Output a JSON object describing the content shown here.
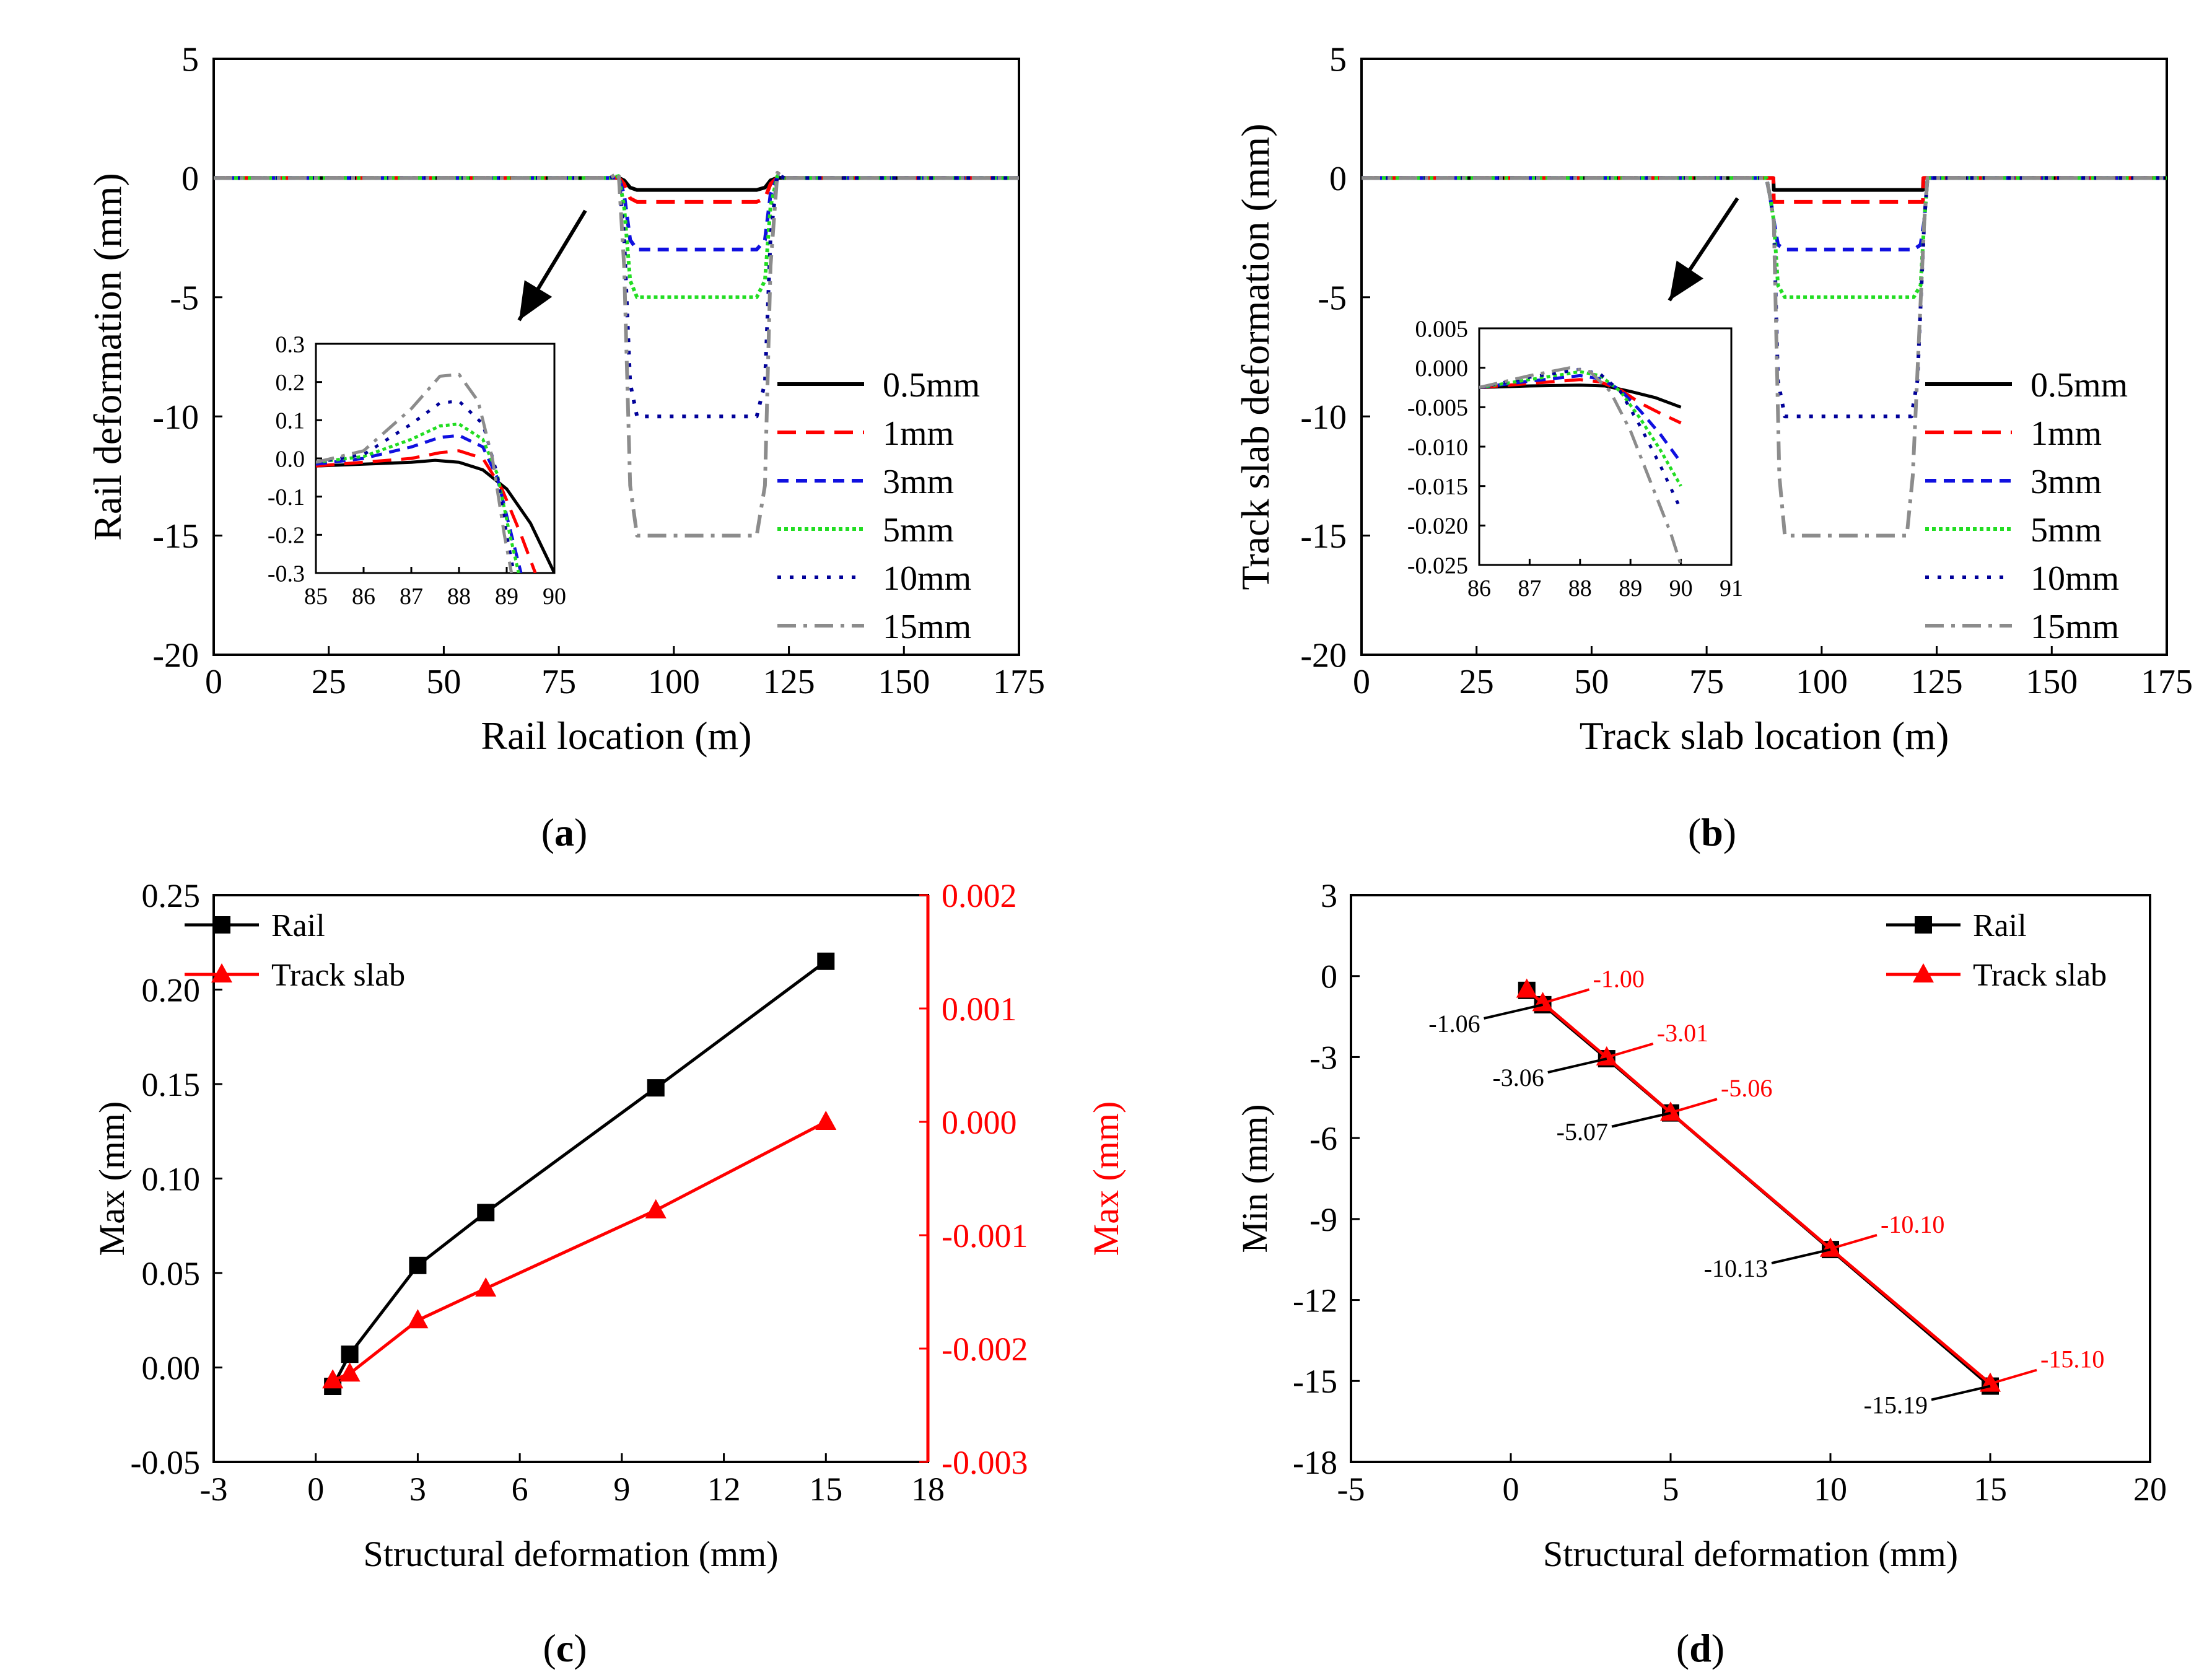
{
  "panels": {
    "a": {
      "label": "a"
    },
    "b": {
      "label": "b"
    },
    "c": {
      "label": "c"
    },
    "d": {
      "label": "d"
    }
  },
  "colors": {
    "0.5mm": "#000000",
    "1mm": "#ff0000",
    "3mm": "#1010e0",
    "5mm": "#22dd22",
    "10mm": "#000099",
    "15mm": "#8c8c8c",
    "Rail": "#000000",
    "Track slab": "#ff0000"
  },
  "chart_data": [
    {
      "id": "a",
      "type": "line",
      "xlabel": "Rail location (m)",
      "ylabel": "Rail deformation (mm)",
      "xlim": [
        0,
        175
      ],
      "ylim": [
        -20,
        5
      ],
      "xticks": [
        0,
        25,
        50,
        75,
        100,
        125,
        150,
        175
      ],
      "yticks": [
        -20,
        -15,
        -10,
        -5,
        0,
        5
      ],
      "legend": {
        "position": "right"
      },
      "series": [
        {
          "name": "0.5mm",
          "style": "solid",
          "x": [
            0,
            86,
            88,
            89.2,
            90.5,
            92,
            118,
            119.8,
            121,
            122.5,
            124,
            175
          ],
          "y": [
            0,
            0,
            0.01,
            -0.1,
            -0.4,
            -0.5,
            -0.5,
            -0.4,
            -0.1,
            0.01,
            0,
            0
          ]
        },
        {
          "name": "1mm",
          "style": "dash",
          "x": [
            0,
            86,
            88,
            89.2,
            90.5,
            92,
            118,
            119.8,
            121,
            122.5,
            124,
            175
          ],
          "y": [
            0,
            0,
            0.02,
            -0.25,
            -0.85,
            -1,
            -1,
            -0.85,
            -0.25,
            0.02,
            0,
            0
          ]
        },
        {
          "name": "3mm",
          "style": "shortdash",
          "x": [
            0,
            86,
            88,
            89.2,
            90.5,
            92,
            118,
            119.8,
            121,
            122.5,
            124,
            175
          ],
          "y": [
            0,
            0,
            0.05,
            -0.7,
            -2.6,
            -3,
            -3,
            -2.6,
            -0.7,
            0.05,
            0,
            0
          ]
        },
        {
          "name": "5mm",
          "style": "dot",
          "x": [
            0,
            86,
            88,
            89.2,
            90.5,
            92,
            118,
            119.8,
            121,
            122.5,
            124,
            175
          ],
          "y": [
            0,
            0,
            0.08,
            -1.2,
            -4.3,
            -5,
            -5,
            -4.3,
            -1.2,
            0.08,
            0,
            0
          ]
        },
        {
          "name": "10mm",
          "style": "sparse-dot",
          "x": [
            0,
            86,
            88,
            89.2,
            90.5,
            92,
            118,
            119.8,
            121,
            122.5,
            124,
            175
          ],
          "y": [
            0,
            0,
            0.15,
            -2.5,
            -8.6,
            -10,
            -10,
            -8.6,
            -2.5,
            0.15,
            0,
            0
          ]
        },
        {
          "name": "15mm",
          "style": "dashdot",
          "x": [
            0,
            86,
            88,
            89.2,
            90.5,
            92,
            118,
            119.8,
            121,
            122.5,
            124,
            175
          ],
          "y": [
            0,
            0,
            0.22,
            -3.7,
            -12.9,
            -15,
            -15,
            -12.9,
            -3.7,
            0.22,
            0,
            0
          ]
        }
      ],
      "inset": {
        "xlim": [
          85,
          90
        ],
        "ylim": [
          -0.3,
          0.3
        ],
        "xticks": [
          85,
          86,
          87,
          88,
          89,
          90
        ],
        "yticks": [
          -0.3,
          -0.2,
          -0.1,
          0.0,
          0.1,
          0.2,
          0.3
        ],
        "ytick_labels": [
          "-0.3",
          "-0.2",
          "-0.1",
          "0.0",
          "0.1",
          "0.2",
          "0.3"
        ],
        "series": [
          {
            "name": "0.5mm",
            "x": [
              85,
              86,
              87,
              87.5,
              88,
              88.5,
              89,
              89.5,
              90
            ],
            "y": [
              -0.02,
              -0.015,
              -0.01,
              -0.005,
              -0.01,
              -0.03,
              -0.08,
              -0.17,
              -0.3
            ]
          },
          {
            "name": "1mm",
            "x": [
              85,
              86,
              87,
              87.6,
              88,
              88.5,
              88.9,
              89.3,
              89.6
            ],
            "y": [
              -0.02,
              -0.01,
              0.0,
              0.015,
              0.02,
              0.0,
              -0.08,
              -0.2,
              -0.3
            ]
          },
          {
            "name": "3mm",
            "x": [
              85,
              86,
              87,
              87.6,
              88,
              88.5,
              88.8,
              89.1,
              89.3
            ],
            "y": [
              -0.015,
              0.0,
              0.03,
              0.055,
              0.06,
              0.03,
              -0.05,
              -0.2,
              -0.3
            ]
          },
          {
            "name": "5mm",
            "x": [
              85,
              86,
              87,
              87.6,
              88,
              88.5,
              88.8,
              89.05,
              89.25
            ],
            "y": [
              -0.01,
              0.005,
              0.05,
              0.085,
              0.09,
              0.05,
              -0.04,
              -0.19,
              -0.3
            ]
          },
          {
            "name": "10mm",
            "x": [
              85,
              86,
              87,
              87.6,
              88,
              88.5,
              88.8,
              89.0,
              89.15
            ],
            "y": [
              -0.01,
              0.01,
              0.09,
              0.145,
              0.15,
              0.09,
              -0.04,
              -0.2,
              -0.3
            ]
          },
          {
            "name": "15mm",
            "x": [
              85,
              86,
              87,
              87.6,
              88,
              88.4,
              88.7,
              88.95,
              89.1
            ],
            "y": [
              -0.01,
              0.02,
              0.13,
              0.215,
              0.22,
              0.15,
              0.0,
              -0.2,
              -0.3
            ]
          }
        ]
      }
    },
    {
      "id": "b",
      "type": "line",
      "xlabel": "Track slab location (m)",
      "ylabel": "Track slab deformation (mm)",
      "xlim": [
        0,
        175
      ],
      "ylim": [
        -20,
        5
      ],
      "xticks": [
        0,
        25,
        50,
        75,
        100,
        125,
        150,
        175
      ],
      "yticks": [
        -20,
        -15,
        -10,
        -5,
        0,
        5
      ],
      "legend": {
        "position": "right"
      },
      "series": [
        {
          "name": "0.5mm",
          "style": "solid",
          "x": [
            0,
            89.5,
            89.6,
            122,
            122.1,
            175
          ],
          "y": [
            0,
            0,
            -0.5,
            -0.5,
            0,
            0
          ]
        },
        {
          "name": "1mm",
          "style": "dash",
          "x": [
            0,
            89.5,
            89.6,
            122,
            122.1,
            175
          ],
          "y": [
            0,
            0,
            -1,
            -1,
            0,
            0
          ]
        },
        {
          "name": "3mm",
          "style": "shortdash",
          "x": [
            0,
            88,
            88.8,
            89.6,
            90.5,
            92,
            120,
            121.5,
            122.3,
            123,
            175
          ],
          "y": [
            0,
            0,
            -0.8,
            -1.8,
            -2.8,
            -3,
            -3,
            -2.8,
            -1.8,
            0,
            0
          ]
        },
        {
          "name": "5mm",
          "style": "dot",
          "x": [
            0,
            88,
            88.8,
            89.6,
            90.5,
            92,
            120,
            121.5,
            122.3,
            123,
            175
          ],
          "y": [
            0,
            0,
            -0.8,
            -1.8,
            -4.5,
            -5,
            -5,
            -4.5,
            -1.8,
            0,
            0
          ]
        },
        {
          "name": "10mm",
          "style": "sparse-dot",
          "x": [
            0,
            88,
            88.8,
            89.6,
            90.5,
            92,
            119.5,
            120.8,
            122.3,
            123,
            175
          ],
          "y": [
            0,
            0,
            -0.8,
            -1.8,
            -8.5,
            -10,
            -10,
            -8.5,
            -1.8,
            0,
            0
          ]
        },
        {
          "name": "15mm",
          "style": "dashdot",
          "x": [
            0,
            88,
            88.8,
            89.6,
            90.8,
            92,
            118.5,
            119.8,
            122.3,
            123,
            175
          ],
          "y": [
            0,
            0,
            -0.8,
            -1.8,
            -12.5,
            -15,
            -15,
            -12.5,
            -1.8,
            0,
            0
          ]
        }
      ],
      "inset": {
        "xlim": [
          86,
          91
        ],
        "ylim": [
          -0.025,
          0.005
        ],
        "xticks": [
          86,
          87,
          88,
          89,
          90,
          91
        ],
        "yticks": [
          -0.025,
          -0.02,
          -0.015,
          -0.01,
          -0.005,
          0.0,
          0.005
        ],
        "ytick_labels": [
          "-0.025",
          "-0.020",
          "-0.015",
          "-0.010",
          "-0.005",
          "0.000",
          "0.005"
        ],
        "series": [
          {
            "name": "0.5mm",
            "x": [
              86,
              87,
              88,
              88.5,
              89,
              89.5,
              90
            ],
            "y": [
              -0.0025,
              -0.0023,
              -0.0022,
              -0.0023,
              -0.003,
              -0.0038,
              -0.005
            ]
          },
          {
            "name": "1mm",
            "x": [
              86,
              87,
              88,
              88.4,
              88.8,
              89.2,
              89.6,
              90
            ],
            "y": [
              -0.0025,
              -0.002,
              -0.0015,
              -0.0018,
              -0.0028,
              -0.0045,
              -0.0058,
              -0.007
            ]
          },
          {
            "name": "3mm",
            "x": [
              86,
              87,
              88,
              88.4,
              88.8,
              89.2,
              89.6,
              90
            ],
            "y": [
              -0.0025,
              -0.0017,
              -0.001,
              -0.0014,
              -0.0028,
              -0.0055,
              -0.0085,
              -0.012
            ]
          },
          {
            "name": "5mm",
            "x": [
              86,
              87,
              88,
              88.4,
              88.8,
              89.2,
              89.6,
              90
            ],
            "y": [
              -0.0025,
              -0.0015,
              -0.0005,
              -0.001,
              -0.003,
              -0.0065,
              -0.0105,
              -0.015
            ]
          },
          {
            "name": "10mm",
            "x": [
              86,
              87,
              88,
              88.4,
              88.8,
              89.2,
              89.6,
              90
            ],
            "y": [
              -0.0025,
              -0.0012,
              -0.0002,
              -0.0008,
              -0.003,
              -0.0075,
              -0.0125,
              -0.018
            ]
          },
          {
            "name": "15mm",
            "x": [
              86,
              87,
              87.8,
              88.2,
              88.6,
              89,
              89.4,
              89.8,
              90
            ],
            "y": [
              -0.0025,
              -0.001,
              0.0,
              -0.0005,
              -0.003,
              -0.008,
              -0.0145,
              -0.021,
              -0.025
            ]
          }
        ]
      }
    },
    {
      "id": "c",
      "type": "line",
      "xlabel": "Structural deformation (mm)",
      "ylabel": "Max (mm)",
      "y2label": "Max (mm)",
      "xlim": [
        -3,
        18
      ],
      "ylim": [
        -0.05,
        0.25
      ],
      "y2lim": [
        -0.003,
        0.002
      ],
      "xticks": [
        -3,
        0,
        3,
        6,
        9,
        12,
        15,
        18
      ],
      "yticks": [
        -0.05,
        0.0,
        0.05,
        0.1,
        0.15,
        0.2,
        0.25
      ],
      "ytick_labels": [
        "-0.05",
        "0.00",
        "0.05",
        "0.10",
        "0.15",
        "0.20",
        "0.25"
      ],
      "y2ticks": [
        -0.003,
        -0.002,
        -0.001,
        0.0,
        0.001,
        0.002
      ],
      "y2tick_labels": [
        "-0.003",
        "-0.002",
        "-0.001",
        "0.000",
        "0.001",
        "0.002"
      ],
      "legend": {
        "position": "top-left"
      },
      "series": [
        {
          "name": "Rail",
          "axis": "left",
          "marker": "square",
          "x": [
            0.5,
            1,
            3,
            5,
            10,
            15
          ],
          "y": [
            -0.01,
            0.007,
            0.054,
            0.082,
            0.148,
            0.215
          ]
        },
        {
          "name": "Track slab",
          "axis": "right",
          "marker": "triangle",
          "x": [
            0.5,
            1,
            3,
            5,
            10,
            15
          ],
          "y": [
            -0.00228,
            -0.00222,
            -0.00175,
            -0.00147,
            -0.00078,
            0.0
          ]
        }
      ]
    },
    {
      "id": "d",
      "type": "line",
      "xlabel": "Structural deformation (mm)",
      "ylabel": "Min (mm)",
      "xlim": [
        -5,
        20
      ],
      "ylim": [
        -18,
        3
      ],
      "xticks": [
        -5,
        0,
        5,
        10,
        15,
        20
      ],
      "yticks": [
        -18,
        -15,
        -12,
        -9,
        -6,
        -3,
        0,
        3
      ],
      "legend": {
        "position": "top-right"
      },
      "series": [
        {
          "name": "Rail",
          "marker": "square",
          "x": [
            0.5,
            1,
            3,
            5,
            10,
            15
          ],
          "y": [
            -0.53,
            -1.06,
            -3.06,
            -5.07,
            -10.13,
            -15.19
          ]
        },
        {
          "name": "Track slab",
          "marker": "triangle",
          "x": [
            0.5,
            1,
            3,
            5,
            10,
            15
          ],
          "y": [
            -0.5,
            -1.0,
            -3.01,
            -5.06,
            -10.1,
            -15.1
          ]
        }
      ],
      "annotations": [
        {
          "text": "-1.06",
          "series": "Rail",
          "x": 1,
          "y": -1.06
        },
        {
          "text": "-3.06",
          "series": "Rail",
          "x": 3,
          "y": -3.06
        },
        {
          "text": "-5.07",
          "series": "Rail",
          "x": 5,
          "y": -5.07
        },
        {
          "text": "-10.13",
          "series": "Rail",
          "x": 10,
          "y": -10.13
        },
        {
          "text": "-15.19",
          "series": "Rail",
          "x": 15,
          "y": -15.19
        },
        {
          "text": "-1.00",
          "series": "Track slab",
          "x": 1,
          "y": -1.0
        },
        {
          "text": "-3.01",
          "series": "Track slab",
          "x": 3,
          "y": -3.01
        },
        {
          "text": "-5.06",
          "series": "Track slab",
          "x": 5,
          "y": -5.06
        },
        {
          "text": "-10.10",
          "series": "Track slab",
          "x": 10,
          "y": -10.1
        },
        {
          "text": "-15.10",
          "series": "Track slab",
          "x": 15,
          "y": -15.1
        }
      ]
    }
  ]
}
